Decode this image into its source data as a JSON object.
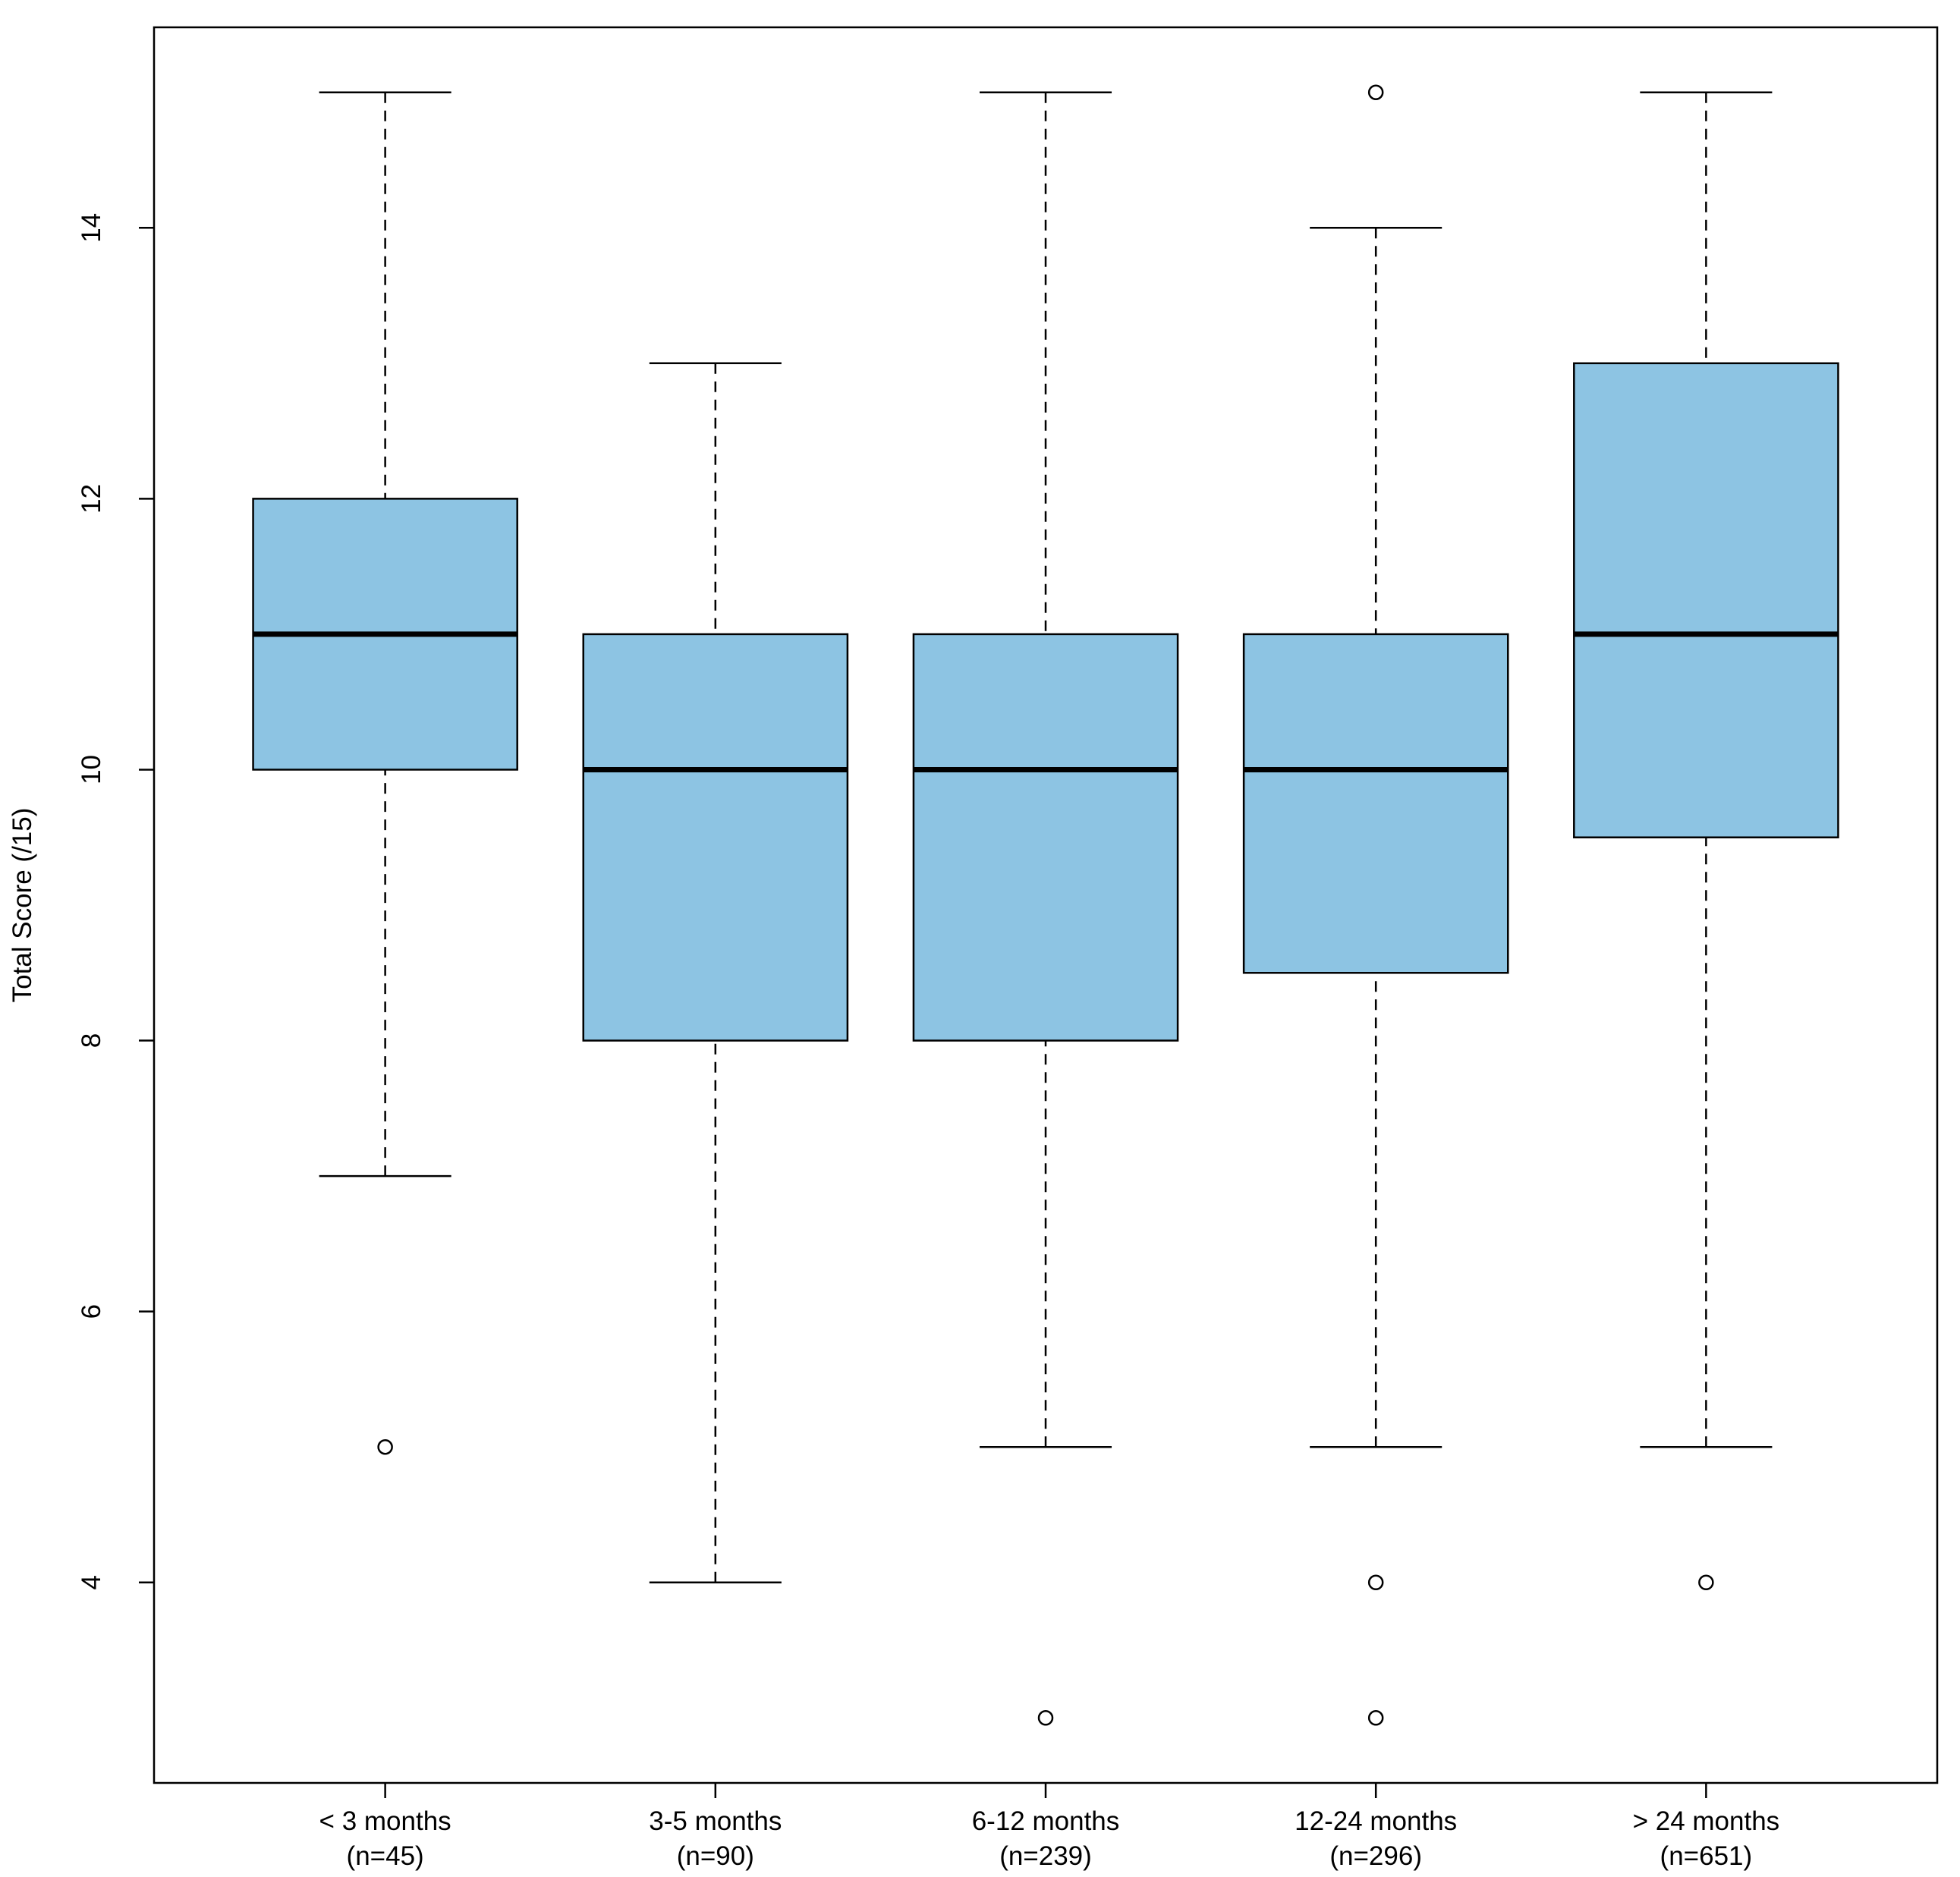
{
  "chart_data": {
    "type": "box",
    "ylabel": "Total Score (/15)",
    "categories": [
      "< 3 months",
      "3-5 months",
      "6-12 months",
      "12-24 months",
      "> 24 months"
    ],
    "category_counts": [
      "(n=45)",
      "(n=90)",
      "(n=239)",
      "(n=296)",
      "(n=651)"
    ],
    "color": "#8dc4e3",
    "boxes": [
      {
        "whisker_low": 7,
        "q1": 10,
        "median": 11,
        "q3": 12,
        "whisker_high": 15,
        "outliers": [
          5
        ]
      },
      {
        "whisker_low": 4,
        "q1": 8,
        "median": 10,
        "q3": 11,
        "whisker_high": 13,
        "outliers": []
      },
      {
        "whisker_low": 5,
        "q1": 8,
        "median": 10,
        "q3": 11,
        "whisker_high": 15,
        "outliers": [
          3
        ]
      },
      {
        "whisker_low": 5,
        "q1": 8.5,
        "median": 10,
        "q3": 11,
        "whisker_high": 14,
        "outliers": [
          15,
          4,
          3
        ]
      },
      {
        "whisker_low": 5,
        "q1": 9.5,
        "median": 11,
        "q3": 13,
        "whisker_high": 15,
        "outliers": [
          4
        ]
      }
    ],
    "ylim": [
      2.52,
      15.48
    ],
    "yticks": [
      4,
      6,
      8,
      10,
      12,
      14
    ]
  }
}
